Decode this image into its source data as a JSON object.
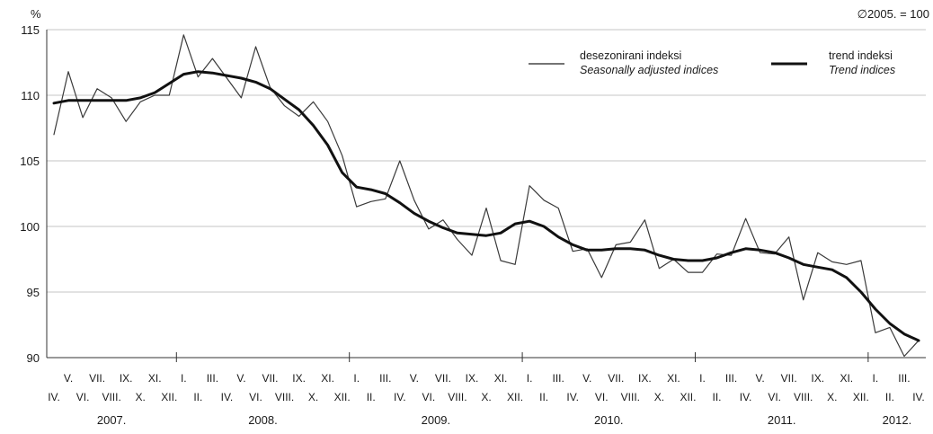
{
  "chart_data": {
    "type": "line",
    "ylabel": "%",
    "base_note": "∅2005. = 100",
    "ylim": [
      90,
      115
    ],
    "yticks": [
      90,
      95,
      100,
      105,
      110,
      115
    ],
    "grid": true,
    "legend_position": "top-right",
    "legend": [
      {
        "series": "seasonal",
        "label": "desezonirani indeksi",
        "label_en": "Seasonally adjusted indices"
      },
      {
        "series": "trend",
        "label": "trend indeksi",
        "label_en": "Trend indices"
      }
    ],
    "months": [
      "IV.",
      "V.",
      "VI.",
      "VII.",
      "VIII.",
      "IX.",
      "X.",
      "XI.",
      "XII.",
      "I.",
      "II.",
      "III.",
      "IV.",
      "V.",
      "VI.",
      "VII.",
      "VIII.",
      "IX.",
      "X.",
      "XI.",
      "XII.",
      "I.",
      "II.",
      "III.",
      "IV.",
      "V.",
      "VI.",
      "VII.",
      "VIII.",
      "IX.",
      "X.",
      "XI.",
      "XII.",
      "I.",
      "II.",
      "III.",
      "IV.",
      "V.",
      "VI.",
      "VII.",
      "VIII.",
      "IX.",
      "X.",
      "XI.",
      "XII.",
      "I.",
      "II.",
      "III.",
      "IV.",
      "V.",
      "VI.",
      "VII.",
      "VIII.",
      "IX.",
      "X.",
      "XI.",
      "XII.",
      "I.",
      "II.",
      "III.",
      "IV."
    ],
    "year_labels": [
      {
        "label": "2007.",
        "start": 0,
        "end": 8
      },
      {
        "label": "2008.",
        "start": 9,
        "end": 20
      },
      {
        "label": "2009.",
        "start": 21,
        "end": 32
      },
      {
        "label": "2010.",
        "start": 33,
        "end": 44
      },
      {
        "label": "2011.",
        "start": 45,
        "end": 56
      },
      {
        "label": "2012.",
        "start": 57,
        "end": 60
      }
    ],
    "series": [
      {
        "id": "seasonal",
        "values": [
          107.0,
          111.8,
          108.3,
          110.5,
          109.8,
          108.0,
          109.5,
          110.0,
          110.0,
          114.6,
          111.4,
          112.8,
          111.3,
          109.8,
          113.7,
          110.6,
          109.2,
          108.4,
          109.5,
          108.0,
          105.4,
          101.5,
          101.9,
          102.1,
          105.0,
          102.0,
          99.8,
          100.5,
          99.0,
          97.8,
          101.4,
          97.4,
          97.1,
          103.1,
          102.0,
          101.4,
          98.1,
          98.3,
          96.1,
          98.6,
          98.8,
          100.5,
          96.8,
          97.5,
          96.5,
          96.5,
          97.9,
          97.8,
          100.6,
          98.0,
          97.9,
          99.2,
          94.4,
          98.0,
          97.3,
          97.1,
          97.4,
          91.9,
          92.3,
          90.1,
          91.3
        ]
      },
      {
        "id": "trend",
        "values": [
          109.4,
          109.6,
          109.6,
          109.6,
          109.6,
          109.6,
          109.8,
          110.2,
          110.9,
          111.6,
          111.8,
          111.7,
          111.5,
          111.3,
          111.0,
          110.5,
          109.7,
          108.9,
          107.7,
          106.2,
          104.1,
          103.0,
          102.8,
          102.5,
          101.8,
          101.0,
          100.4,
          99.9,
          99.5,
          99.4,
          99.3,
          99.5,
          100.2,
          100.4,
          100.0,
          99.2,
          98.6,
          98.2,
          98.2,
          98.3,
          98.3,
          98.2,
          97.8,
          97.5,
          97.4,
          97.4,
          97.6,
          98.0,
          98.3,
          98.2,
          98.0,
          97.6,
          97.1,
          96.9,
          96.7,
          96.1,
          95.0,
          93.7,
          92.6,
          91.8,
          91.3
        ]
      }
    ]
  }
}
